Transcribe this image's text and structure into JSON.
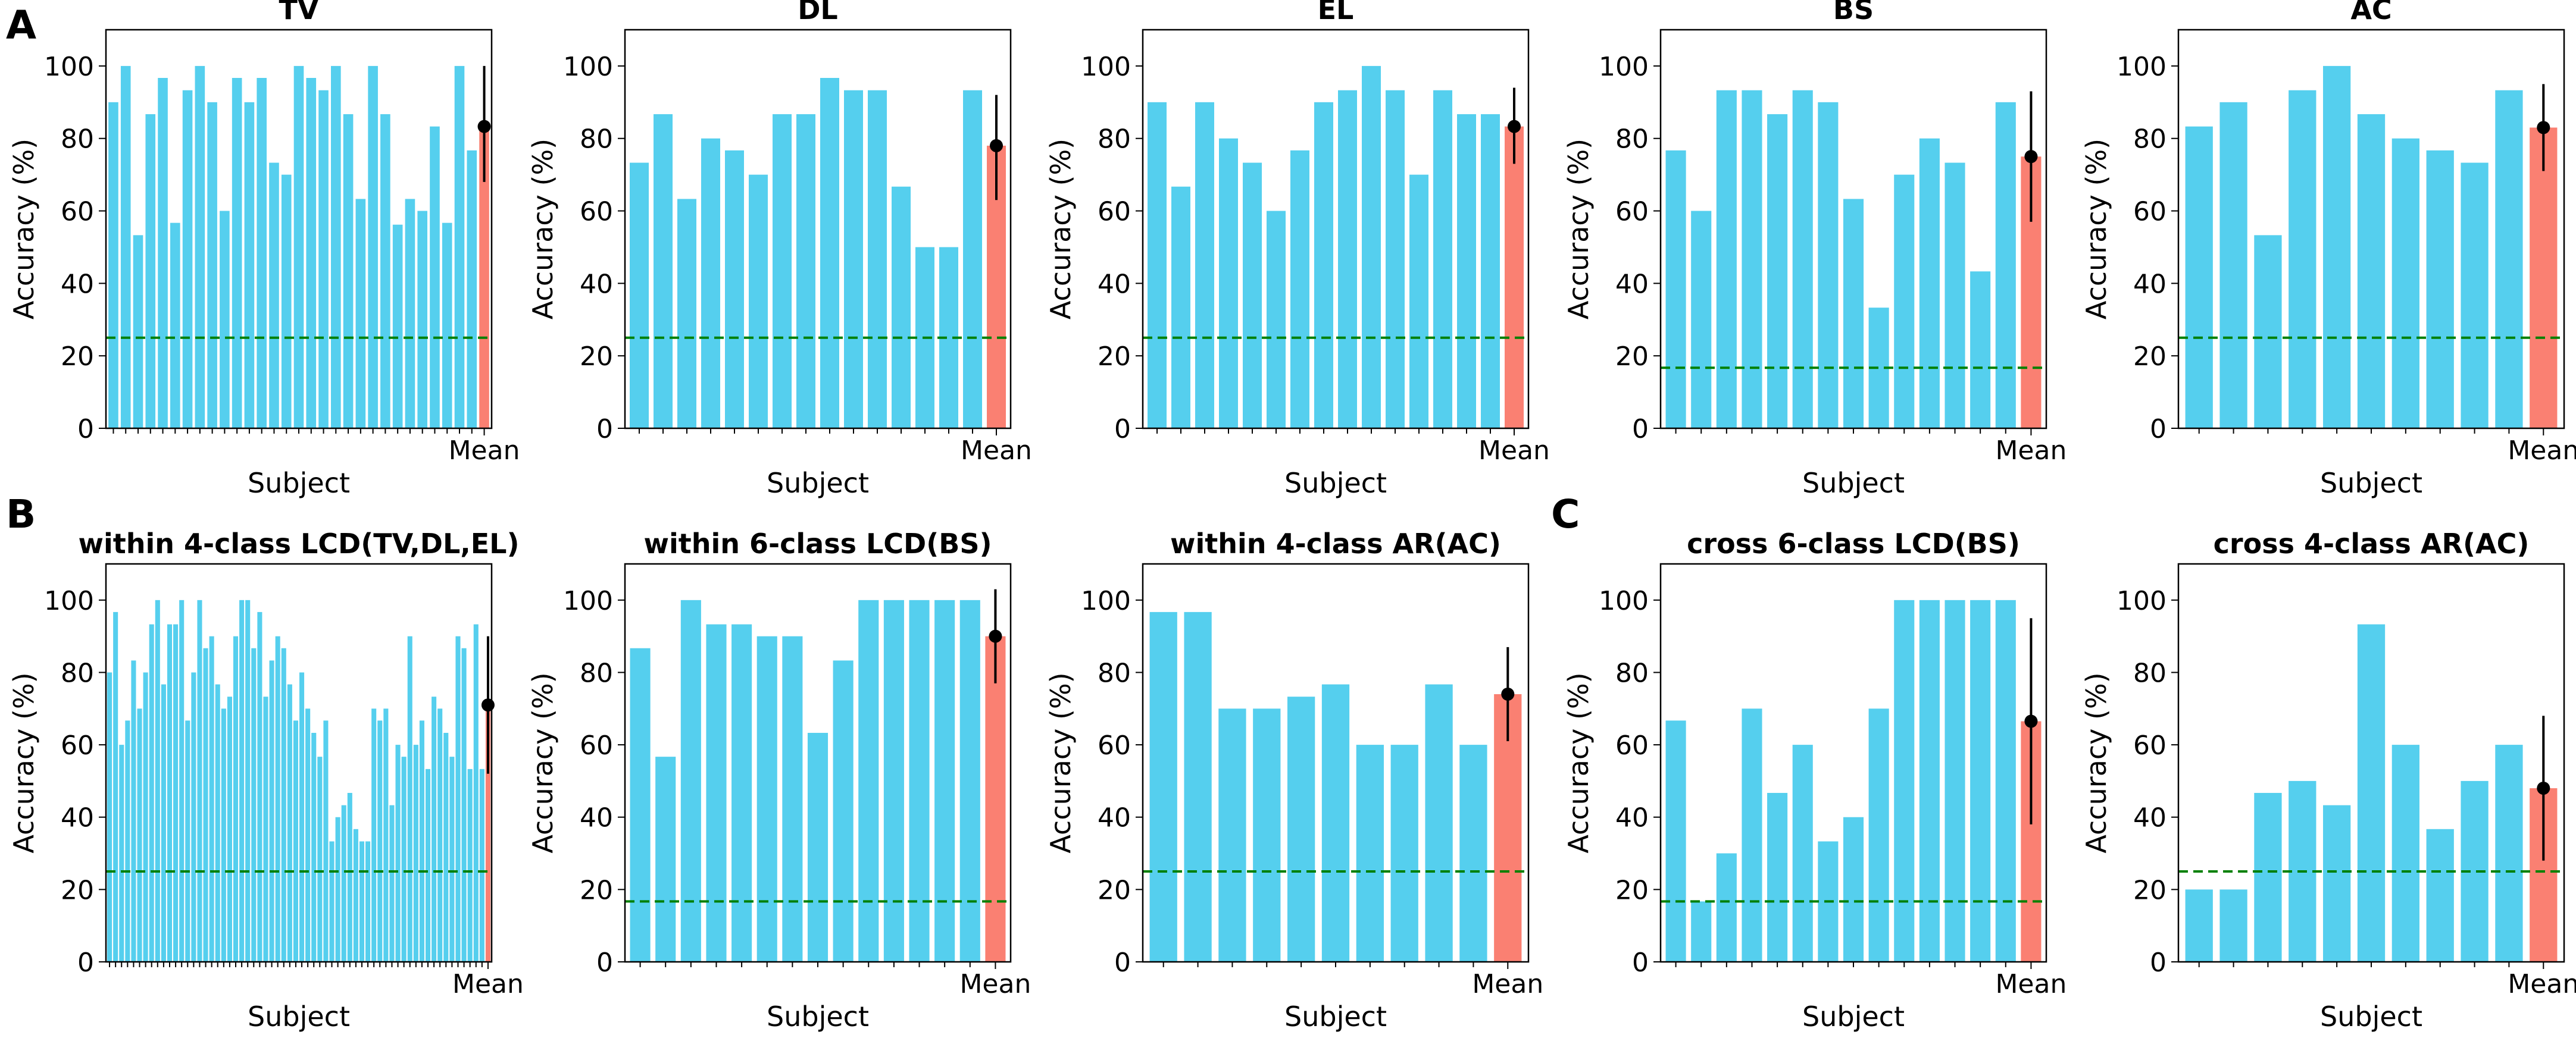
{
  "panel_labels": {
    "A": "A",
    "B": "B",
    "C": "C"
  },
  "colors": {
    "subject_bar": "#55CFEE",
    "mean_bar": "#FA8072",
    "chance_line": "#008000",
    "error_bar": "#000000"
  },
  "chart_data": [
    {
      "type": "bar",
      "title": "TV",
      "xlabel": "Subject",
      "ylabel": "Accuracy (%)",
      "ylim": [
        0,
        110
      ],
      "yticks": [
        0,
        20,
        40,
        60,
        80,
        100
      ],
      "mean_label": "Mean",
      "chance_level": 25,
      "values": [
        90,
        100,
        53.3,
        86.7,
        96.7,
        56.7,
        93.3,
        100,
        90,
        60,
        96.7,
        90,
        96.7,
        73.3,
        70,
        100,
        96.7,
        93.3,
        100,
        86.7,
        63.3,
        100,
        86.7,
        56.2,
        63.3,
        60,
        83.3,
        56.7,
        100,
        76.7
      ],
      "mean": 83.3,
      "mean_error": [
        68,
        100
      ]
    },
    {
      "type": "bar",
      "title": "DL",
      "xlabel": "Subject",
      "ylabel": "Accuracy (%)",
      "ylim": [
        0,
        110
      ],
      "yticks": [
        0,
        20,
        40,
        60,
        80,
        100
      ],
      "mean_label": "Mean",
      "chance_level": 25,
      "values": [
        73.3,
        86.7,
        63.3,
        80,
        76.7,
        70,
        86.7,
        86.7,
        96.7,
        93.3,
        93.3,
        66.7,
        50,
        50,
        93.3
      ],
      "mean": 78,
      "mean_error": [
        63,
        92
      ]
    },
    {
      "type": "bar",
      "title": "EL",
      "xlabel": "Subject",
      "ylabel": "Accuracy (%)",
      "ylim": [
        0,
        110
      ],
      "yticks": [
        0,
        20,
        40,
        60,
        80,
        100
      ],
      "mean_label": "Mean",
      "chance_level": 25,
      "values": [
        90,
        66.7,
        90,
        80,
        73.3,
        60,
        76.7,
        90,
        93.3,
        100,
        93.3,
        70,
        93.3,
        86.7,
        86.7
      ],
      "mean": 83.3,
      "mean_error": [
        73,
        94
      ]
    },
    {
      "type": "bar",
      "title": "BS",
      "xlabel": "Subject",
      "ylabel": "Accuracy (%)",
      "ylim": [
        0,
        110
      ],
      "yticks": [
        0,
        20,
        40,
        60,
        80,
        100
      ],
      "mean_label": "Mean",
      "chance_level": 16.7,
      "values": [
        76.7,
        60,
        93.3,
        93.3,
        86.7,
        93.3,
        90,
        63.3,
        33.3,
        70,
        80,
        73.3,
        43.3,
        90
      ],
      "mean": 75,
      "mean_error": [
        57,
        93
      ]
    },
    {
      "type": "bar",
      "title": "AC",
      "xlabel": "Subject",
      "ylabel": "Accuracy (%)",
      "ylim": [
        0,
        110
      ],
      "yticks": [
        0,
        20,
        40,
        60,
        80,
        100
      ],
      "mean_label": "Mean",
      "chance_level": 25,
      "values": [
        83.3,
        90,
        53.3,
        93.3,
        100,
        86.7,
        80,
        76.7,
        73.3,
        93.3
      ],
      "mean": 83,
      "mean_error": [
        71,
        95
      ]
    },
    {
      "type": "bar",
      "title": "within 4-class LCD(TV,DL,EL)",
      "xlabel": "Subject",
      "ylabel": "Accuracy (%)",
      "ylim": [
        0,
        110
      ],
      "yticks": [
        0,
        20,
        40,
        60,
        80,
        100
      ],
      "mean_label": "Mean",
      "chance_level": 25,
      "values": [
        80,
        96.7,
        60,
        66.7,
        83.3,
        70,
        80,
        93.3,
        100,
        76.7,
        93.3,
        93.3,
        100,
        66.7,
        80,
        100,
        86.7,
        90,
        76.7,
        70,
        73.3,
        90,
        100,
        100,
        86.7,
        96.7,
        73.3,
        83.3,
        90,
        86.7,
        76.7,
        66.7,
        80,
        70,
        63.3,
        56.7,
        66.7,
        33.3,
        40,
        43.3,
        46.7,
        36.7,
        33.3,
        33.3,
        70,
        66.7,
        70,
        43.3,
        60,
        56.7,
        90,
        60,
        66.7,
        53.3,
        73.3,
        70,
        63.3,
        56.7,
        90,
        86.7,
        53.3,
        93.3,
        53.3
      ],
      "mean": 71,
      "mean_error": [
        52,
        90
      ]
    },
    {
      "type": "bar",
      "title": "within 6-class LCD(BS)",
      "xlabel": "Subject",
      "ylabel": "Accuracy (%)",
      "ylim": [
        0,
        110
      ],
      "yticks": [
        0,
        20,
        40,
        60,
        80,
        100
      ],
      "mean_label": "Mean",
      "chance_level": 16.7,
      "values": [
        86.7,
        56.7,
        100,
        93.3,
        93.3,
        90,
        90,
        63.3,
        83.3,
        100,
        100,
        100,
        100,
        100
      ],
      "mean": 90,
      "mean_error": [
        77,
        103
      ]
    },
    {
      "type": "bar",
      "title": "within 4-class AR(AC)",
      "xlabel": "Subject",
      "ylabel": "Accuracy (%)",
      "ylim": [
        0,
        110
      ],
      "yticks": [
        0,
        20,
        40,
        60,
        80,
        100
      ],
      "mean_label": "Mean",
      "chance_level": 25,
      "values": [
        96.7,
        96.7,
        70,
        70,
        73.3,
        76.7,
        60,
        60,
        76.7,
        60
      ],
      "mean": 74,
      "mean_error": [
        61,
        87
      ]
    },
    {
      "type": "bar",
      "title": "cross 6-class LCD(BS)",
      "xlabel": "Subject",
      "ylabel": "Accuracy (%)",
      "ylim": [
        0,
        110
      ],
      "yticks": [
        0,
        20,
        40,
        60,
        80,
        100
      ],
      "mean_label": "Mean",
      "chance_level": 16.7,
      "values": [
        66.7,
        16.7,
        30,
        70,
        46.7,
        60,
        33.3,
        40,
        70,
        100,
        100,
        100,
        100,
        100
      ],
      "mean": 66.5,
      "mean_error": [
        38,
        95
      ]
    },
    {
      "type": "bar",
      "title": "cross 4-class AR(AC)",
      "xlabel": "Subject",
      "ylabel": "Accuracy (%)",
      "ylim": [
        0,
        110
      ],
      "yticks": [
        0,
        20,
        40,
        60,
        80,
        100
      ],
      "mean_label": "Mean",
      "chance_level": 25,
      "values": [
        20,
        20,
        46.7,
        50,
        43.3,
        93.3,
        60,
        36.7,
        50,
        60
      ],
      "mean": 48,
      "mean_error": [
        28,
        68
      ]
    }
  ]
}
